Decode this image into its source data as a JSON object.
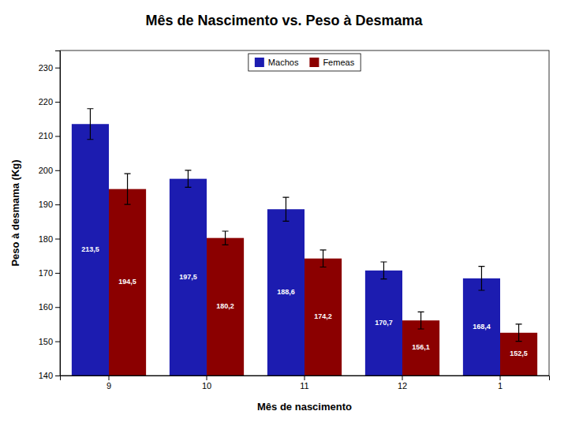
{
  "chart_data": {
    "type": "bar",
    "title": "Mês de Nascimento vs. Peso à Desmama",
    "xlabel": "Mês de nascimento",
    "ylabel": "Peso à desmama (Kg)",
    "categories": [
      "9",
      "10",
      "11",
      "12",
      "1"
    ],
    "series": [
      {
        "name": "Machos",
        "color": "#1C1CB0",
        "values": [
          213.5,
          197.5,
          188.6,
          170.7,
          168.4
        ],
        "errors": [
          4.5,
          2.5,
          3.5,
          2.5,
          3.5
        ],
        "value_labels": [
          "213,5",
          "197,5",
          "188,6",
          "170,7",
          "168,4"
        ]
      },
      {
        "name": "Femeas",
        "color": "#8B0000",
        "values": [
          194.5,
          180.2,
          174.2,
          156.1,
          152.5
        ],
        "errors": [
          4.5,
          2.0,
          2.5,
          2.5,
          2.5
        ],
        "value_labels": [
          "194,5",
          "180,2",
          "174,2",
          "156,1",
          "152,5"
        ]
      }
    ],
    "ylim": [
      140,
      235
    ],
    "yticks": [
      140,
      150,
      160,
      170,
      180,
      190,
      200,
      210,
      220,
      230
    ],
    "grid": false,
    "legend": "upper center",
    "data_labels": true
  }
}
